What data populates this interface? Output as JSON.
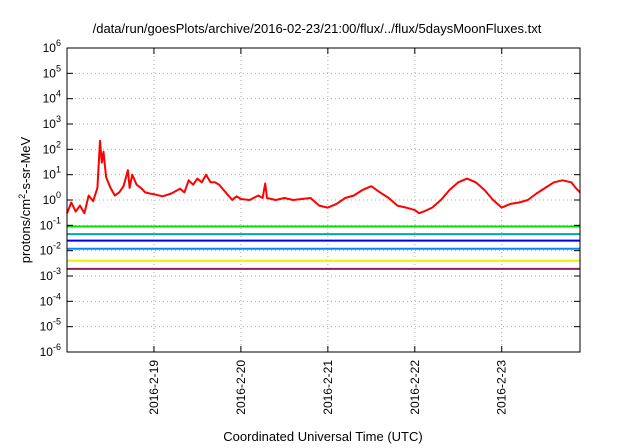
{
  "chart_data": {
    "type": "line",
    "title": "/data/run/goesPlots/archive/2016-02-23/21:00/flux/../flux/5daysMoonFluxes.txt",
    "xlabel": "Coordinated Universal Time (UTC)",
    "ylabel": {
      "main": "protons/cm",
      "sup": "2",
      "rest": "-s-sr-MeV"
    },
    "y_scale": "log",
    "ylim": [
      1e-06,
      1000000.0
    ],
    "y_ticks": [
      {
        "value": 1e-06,
        "base": "10",
        "exp": "-6"
      },
      {
        "value": 1e-05,
        "base": "10",
        "exp": "-5"
      },
      {
        "value": 0.0001,
        "base": "10",
        "exp": "-4"
      },
      {
        "value": 0.001,
        "base": "10",
        "exp": "-3"
      },
      {
        "value": 0.01,
        "base": "10",
        "exp": "-2"
      },
      {
        "value": 0.1,
        "base": "10",
        "exp": "-1"
      },
      {
        "value": 1,
        "base": "10",
        "exp": "0"
      },
      {
        "value": 10.0,
        "base": "10",
        "exp": "1"
      },
      {
        "value": 100.0,
        "base": "10",
        "exp": "2"
      },
      {
        "value": 1000.0,
        "base": "10",
        "exp": "3"
      },
      {
        "value": 10000.0,
        "base": "10",
        "exp": "4"
      },
      {
        "value": 100000.0,
        "base": "10",
        "exp": "5"
      },
      {
        "value": 1000000.0,
        "base": "10",
        "exp": "6"
      }
    ],
    "xlim": [
      -1.0,
      4.9
    ],
    "x_ticks": [
      {
        "value": 0,
        "label": "2016-2-19"
      },
      {
        "value": 1,
        "label": "2016-2-20"
      },
      {
        "value": 2,
        "label": "2016-2-21"
      },
      {
        "value": 3,
        "label": "2016-2-22"
      },
      {
        "value": 4,
        "label": "2016-2-23"
      }
    ],
    "grid": true,
    "legend": "none",
    "series": [
      {
        "color": "#ff0000",
        "x": [
          -1.0,
          -0.95,
          -0.9,
          -0.85,
          -0.8,
          -0.75,
          -0.7,
          -0.65,
          -0.62,
          -0.6,
          -0.58,
          -0.55,
          -0.5,
          -0.45,
          -0.4,
          -0.35,
          -0.3,
          -0.28,
          -0.25,
          -0.2,
          -0.15,
          -0.1,
          -0.05,
          0.0,
          0.1,
          0.2,
          0.3,
          0.35,
          0.4,
          0.45,
          0.5,
          0.55,
          0.6,
          0.65,
          0.7,
          0.75,
          0.8,
          0.9,
          0.95,
          1.0,
          1.1,
          1.2,
          1.25,
          1.28,
          1.3,
          1.4,
          1.5,
          1.6,
          1.7,
          1.8,
          1.9,
          2.0,
          2.1,
          2.2,
          2.3,
          2.4,
          2.5,
          2.6,
          2.7,
          2.8,
          2.9,
          3.0,
          3.05,
          3.1,
          3.2,
          3.3,
          3.4,
          3.5,
          3.6,
          3.7,
          3.8,
          3.9,
          4.0,
          4.1,
          4.2,
          4.3,
          4.4,
          4.5,
          4.6,
          4.7,
          4.8,
          4.85,
          4.9
        ],
        "y": [
          0.3,
          0.8,
          0.35,
          0.6,
          0.3,
          1.5,
          0.9,
          3.0,
          220,
          30,
          80,
          8,
          3,
          1.5,
          2.0,
          3.5,
          15,
          3.0,
          10,
          4.0,
          3.0,
          2.0,
          1.8,
          1.7,
          1.4,
          1.8,
          2.8,
          2.0,
          6,
          4,
          7,
          5,
          10,
          5,
          5,
          4,
          2.5,
          1.0,
          1.4,
          1.1,
          1.0,
          1.5,
          1.2,
          4.5,
          1.2,
          1.0,
          1.2,
          1.0,
          1.1,
          1.2,
          0.6,
          0.5,
          0.7,
          1.2,
          1.5,
          2.5,
          3.5,
          2.0,
          1.2,
          0.6,
          0.5,
          0.4,
          0.3,
          0.35,
          0.5,
          1.0,
          2.5,
          5.0,
          7.0,
          5.0,
          2.5,
          1.0,
          0.5,
          0.7,
          0.8,
          1.0,
          1.8,
          3.0,
          5.0,
          6.0,
          5.0,
          3.0,
          2.0
        ]
      },
      {
        "color": "#00dd00",
        "x": [
          -1.0,
          4.9
        ],
        "y": [
          0.09,
          0.09
        ]
      },
      {
        "color": "#00aaaa",
        "x": [
          -1.0,
          4.9
        ],
        "y": [
          0.045,
          0.045
        ]
      },
      {
        "color": "#0000ee",
        "x": [
          -1.0,
          4.9
        ],
        "y": [
          0.025,
          0.025
        ]
      },
      {
        "color": "#0088ff",
        "x": [
          -1.0,
          4.9
        ],
        "y": [
          0.012,
          0.012
        ]
      },
      {
        "color": "#eeee00",
        "x": [
          -1.0,
          4.9
        ],
        "y": [
          0.004,
          0.004
        ]
      },
      {
        "color": "#8b2252",
        "x": [
          -1.0,
          4.9
        ],
        "y": [
          0.0019,
          0.0019
        ]
      }
    ]
  }
}
